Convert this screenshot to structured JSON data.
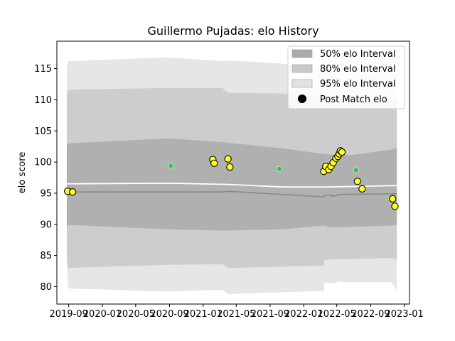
{
  "chart_data": {
    "type": "scatter",
    "title": "Guillermo Pujadas: elo History",
    "xlabel": "",
    "ylabel": "elo score",
    "xlim": [
      "2019-07-20",
      "2023-01-20"
    ],
    "ylim": [
      77.2,
      119.4
    ],
    "x_ticks": [
      "2019-09",
      "2020-01",
      "2020-05",
      "2020-09",
      "2021-01",
      "2021-05",
      "2021-09",
      "2022-01",
      "2022-05",
      "2022-09",
      "2023-01"
    ],
    "y_ticks": [
      80,
      85,
      90,
      95,
      100,
      105,
      110,
      115
    ],
    "grid": false,
    "legend_position": "top-right",
    "legend": {
      "band50": "50% elo Interval",
      "band80": "80% elo Interval",
      "band95": "95% elo Interval",
      "post": "Post Match elo"
    },
    "colors": {
      "band50": "#aaaaaa",
      "band80": "#c8c8c8",
      "band95": "#e2e2e2",
      "mean_line": "#ffffff",
      "median_line": "#888888",
      "post_fill": "#ffff22",
      "post_edge": "#000000",
      "pre_fill": "#22b3c2",
      "pre_edge": "#ffff00"
    },
    "series": [
      {
        "name": "95% elo Interval",
        "kind": "band",
        "points": [
          {
            "x": "2019-08-25",
            "lower": 84.0,
            "upper": 115.2
          },
          {
            "x": "2019-08-30",
            "lower": 79.7,
            "upper": 116.2
          },
          {
            "x": "2020-08-28",
            "lower": 79.2,
            "upper": 116.8
          },
          {
            "x": "2021-03-10",
            "lower": 79.5,
            "upper": 116.2
          },
          {
            "x": "2021-04-05",
            "lower": 78.8,
            "upper": 116.3
          },
          {
            "x": "2021-10-15",
            "lower": 79.1,
            "upper": 115.8
          },
          {
            "x": "2022-03-15",
            "lower": 79.3,
            "upper": 115.0
          },
          {
            "x": "2022-03-16",
            "lower": 80.6,
            "upper": 114.9
          },
          {
            "x": "2022-05-01",
            "lower": 80.6,
            "upper": 114.8
          },
          {
            "x": "2022-05-02",
            "lower": 80.8,
            "upper": 114.8
          },
          {
            "x": "2022-06-10",
            "lower": 80.7,
            "upper": 114.6
          },
          {
            "x": "2022-11-15",
            "lower": 80.7,
            "upper": 114.2
          },
          {
            "x": "2022-12-05",
            "lower": 79.4,
            "upper": 114.2
          }
        ]
      },
      {
        "name": "80% elo Interval",
        "kind": "band",
        "points": [
          {
            "x": "2019-08-25",
            "lower": 84.5,
            "upper": 110.8
          },
          {
            "x": "2019-08-30",
            "lower": 83.0,
            "upper": 111.6
          },
          {
            "x": "2020-08-28",
            "lower": 83.5,
            "upper": 111.9
          },
          {
            "x": "2021-03-10",
            "lower": 83.6,
            "upper": 111.9
          },
          {
            "x": "2021-04-05",
            "lower": 83.0,
            "upper": 111.1
          },
          {
            "x": "2021-10-15",
            "lower": 83.2,
            "upper": 111.0
          },
          {
            "x": "2022-03-15",
            "lower": 83.4,
            "upper": 110.3
          },
          {
            "x": "2022-03-16",
            "lower": 84.3,
            "upper": 110.3
          },
          {
            "x": "2022-05-01",
            "lower": 84.4,
            "upper": 110.2
          },
          {
            "x": "2022-11-15",
            "lower": 84.6,
            "upper": 110.0
          },
          {
            "x": "2022-12-05",
            "lower": 84.4,
            "upper": 110.0
          }
        ]
      },
      {
        "name": "50% elo Interval",
        "kind": "band",
        "points": [
          {
            "x": "2019-08-25",
            "lower": 89.8,
            "upper": 102.6
          },
          {
            "x": "2019-08-30",
            "lower": 89.9,
            "upper": 103.0
          },
          {
            "x": "2020-08-28",
            "lower": 89.2,
            "upper": 103.8
          },
          {
            "x": "2021-03-10",
            "lower": 89.0,
            "upper": 103.2
          },
          {
            "x": "2021-10-15",
            "lower": 89.2,
            "upper": 102.2
          },
          {
            "x": "2022-03-15",
            "lower": 89.8,
            "upper": 101.3
          },
          {
            "x": "2022-04-15",
            "lower": 89.5,
            "upper": 101.2
          },
          {
            "x": "2022-06-20",
            "lower": 89.6,
            "upper": 101.1
          },
          {
            "x": "2022-11-15",
            "lower": 89.8,
            "upper": 102.0
          },
          {
            "x": "2022-12-05",
            "lower": 89.9,
            "upper": 102.3
          }
        ]
      },
      {
        "name": "",
        "kind": "line",
        "style": "mean",
        "points": [
          {
            "x": "2019-08-25",
            "y": 96.5
          },
          {
            "x": "2020-08-28",
            "y": 96.6
          },
          {
            "x": "2021-04-05",
            "y": 96.4
          },
          {
            "x": "2021-10-15",
            "y": 96.0
          },
          {
            "x": "2022-04-01",
            "y": 96.0
          },
          {
            "x": "2022-11-15",
            "y": 96.2
          },
          {
            "x": "2022-12-05",
            "y": 96.2
          }
        ]
      },
      {
        "name": "",
        "kind": "line",
        "style": "median",
        "points": [
          {
            "x": "2019-08-25",
            "y": 95.2
          },
          {
            "x": "2021-03-10",
            "y": 95.2
          },
          {
            "x": "2021-04-05",
            "y": 95.3
          },
          {
            "x": "2021-10-15",
            "y": 94.8
          },
          {
            "x": "2022-03-15",
            "y": 94.4
          },
          {
            "x": "2022-03-20",
            "y": 94.7
          },
          {
            "x": "2022-04-10",
            "y": 94.7
          },
          {
            "x": "2022-04-15",
            "y": 94.5
          },
          {
            "x": "2022-05-15",
            "y": 94.8
          },
          {
            "x": "2022-12-05",
            "y": 94.9
          }
        ]
      },
      {
        "name": "",
        "kind": "scatter",
        "style": "pre",
        "points": [
          {
            "x": "2019-08-28",
            "y": 95.4
          },
          {
            "x": "2019-09-15",
            "y": 95.2
          },
          {
            "x": "2020-09-05",
            "y": 99.4
          },
          {
            "x": "2021-10-05",
            "y": 98.9
          },
          {
            "x": "2022-07-10",
            "y": 98.7
          },
          {
            "x": "2022-08-05",
            "y": 95.8
          },
          {
            "x": "2022-11-15",
            "y": 94.1
          }
        ]
      },
      {
        "name": "Post Match elo",
        "kind": "scatter",
        "style": "post",
        "points": [
          {
            "x": "2019-08-28",
            "y": 95.3
          },
          {
            "x": "2019-09-15",
            "y": 95.2
          },
          {
            "x": "2021-02-05",
            "y": 100.4
          },
          {
            "x": "2021-02-10",
            "y": 99.8
          },
          {
            "x": "2021-04-01",
            "y": 100.5
          },
          {
            "x": "2021-04-08",
            "y": 99.2
          },
          {
            "x": "2022-03-15",
            "y": 98.5
          },
          {
            "x": "2022-03-22",
            "y": 99.3
          },
          {
            "x": "2022-04-02",
            "y": 98.8
          },
          {
            "x": "2022-04-10",
            "y": 99.3
          },
          {
            "x": "2022-04-18",
            "y": 99.9
          },
          {
            "x": "2022-04-28",
            "y": 100.6
          },
          {
            "x": "2022-05-05",
            "y": 100.9
          },
          {
            "x": "2022-05-10",
            "y": 101.3
          },
          {
            "x": "2022-05-14",
            "y": 101.8
          },
          {
            "x": "2022-05-20",
            "y": 101.6
          },
          {
            "x": "2022-07-15",
            "y": 96.9
          },
          {
            "x": "2022-08-01",
            "y": 95.7
          },
          {
            "x": "2022-11-20",
            "y": 94.1
          },
          {
            "x": "2022-11-28",
            "y": 92.9
          }
        ]
      }
    ]
  }
}
